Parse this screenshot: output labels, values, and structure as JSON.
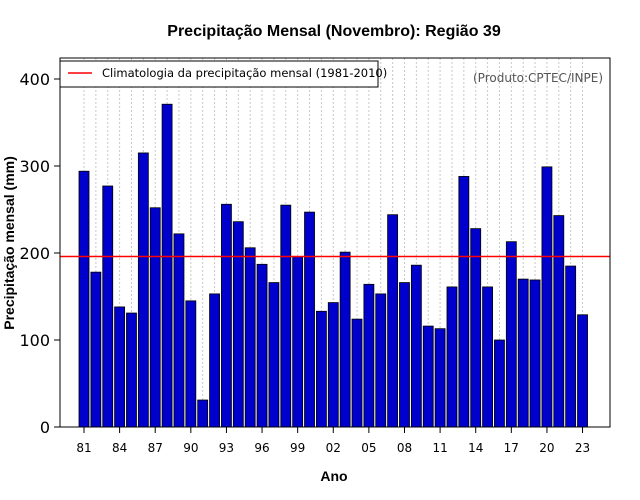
{
  "chart_data": {
    "type": "bar",
    "title": "Precipitação Mensal (Novembro): Região 39",
    "xlabel": "Ano",
    "ylabel": "Precipitação mensal (mm)",
    "ylim": [
      0,
      400
    ],
    "yticks": [
      0,
      100,
      200,
      300,
      400
    ],
    "source_note": "(Produto:CPTEC/INPE)",
    "categories": [
      "1981",
      "1982",
      "1983",
      "1984",
      "1985",
      "1986",
      "1987",
      "1988",
      "1989",
      "1990",
      "1991",
      "1992",
      "1993",
      "1994",
      "1995",
      "1996",
      "1997",
      "1998",
      "1999",
      "2000",
      "2001",
      "2002",
      "2003",
      "2004",
      "2005",
      "2006",
      "2007",
      "2008",
      "2009",
      "2010",
      "2011",
      "2012",
      "2013",
      "2014",
      "2015",
      "2016",
      "2017",
      "2018",
      "2019",
      "2020",
      "2021",
      "2022",
      "2023"
    ],
    "xtick_labels": [
      {
        "index": 0,
        "label": "81"
      },
      {
        "index": 3,
        "label": "84"
      },
      {
        "index": 6,
        "label": "87"
      },
      {
        "index": 9,
        "label": "90"
      },
      {
        "index": 12,
        "label": "93"
      },
      {
        "index": 15,
        "label": "96"
      },
      {
        "index": 18,
        "label": "99"
      },
      {
        "index": 21,
        "label": "02"
      },
      {
        "index": 24,
        "label": "05"
      },
      {
        "index": 27,
        "label": "08"
      },
      {
        "index": 30,
        "label": "11"
      },
      {
        "index": 33,
        "label": "14"
      },
      {
        "index": 36,
        "label": "17"
      },
      {
        "index": 39,
        "label": "20"
      },
      {
        "index": 42,
        "label": "23"
      }
    ],
    "series": [
      {
        "name": "Precipitação mensal",
        "color": "#0000cd",
        "values": [
          294,
          178,
          277,
          138,
          131,
          315,
          252,
          371,
          222,
          145,
          31,
          153,
          256,
          236,
          206,
          187,
          166,
          255,
          196,
          247,
          133,
          143,
          201,
          124,
          164,
          153,
          244,
          166,
          186,
          116,
          113,
          161,
          288,
          228,
          161,
          100,
          213,
          170,
          169,
          299,
          243,
          185,
          129
        ]
      }
    ],
    "reference_line": {
      "label": "Climatologia da precipitação mensal (1981-2010)",
      "value": 196,
      "color": "#ff0000"
    },
    "grid": "vertical dotted",
    "legend_position": "top-left"
  }
}
